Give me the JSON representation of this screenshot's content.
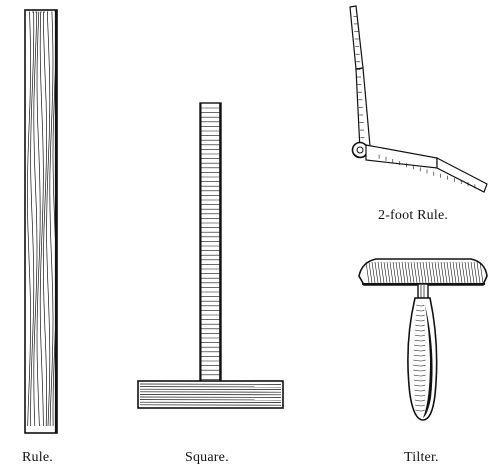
{
  "figures": [
    {
      "id": "rule",
      "caption": "Rule.",
      "icon": "rule-icon"
    },
    {
      "id": "square",
      "caption": "Square.",
      "icon": "square-icon"
    },
    {
      "id": "two-foot-rule",
      "caption": "2-foot Rule.",
      "icon": "folding-rule-icon"
    },
    {
      "id": "tilter",
      "caption": "Tilter.",
      "icon": "tilter-icon"
    }
  ],
  "colors": {
    "ink": "#111111",
    "paper": "#ffffff"
  }
}
